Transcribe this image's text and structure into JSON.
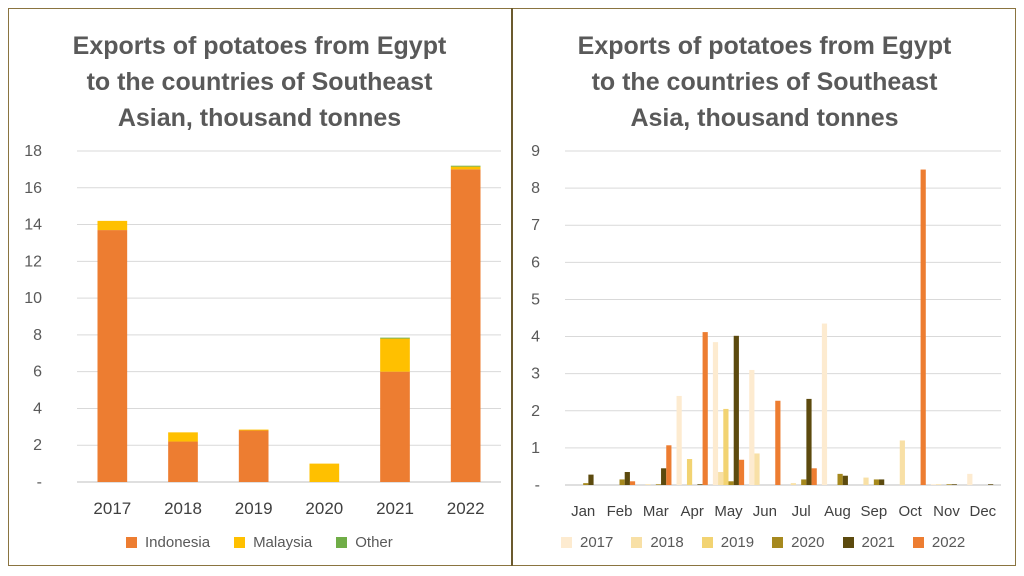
{
  "charts": [
    {
      "title_lines": [
        "Exports of potatoes from Egypt",
        "to the countries of Southeast",
        "Asian, thousand tonnes"
      ]
    },
    {
      "title_lines": [
        "Exports of potatoes from Egypt",
        "to the countries of Southeast",
        "Asia, thousand tonnes"
      ]
    }
  ],
  "chart_data": [
    {
      "type": "bar",
      "stacked": true,
      "title": "Exports of potatoes from Egypt to the countries of Southeast Asian, thousand tonnes",
      "categories": [
        "2017",
        "2018",
        "2019",
        "2020",
        "2021",
        "2022"
      ],
      "series": [
        {
          "name": "Indonesia",
          "color": "#ED7D31",
          "values": [
            13.7,
            2.2,
            2.8,
            0,
            6.0,
            17.0
          ]
        },
        {
          "name": "Malaysia",
          "color": "#FFC000",
          "values": [
            0.5,
            0.5,
            0.05,
            1.0,
            1.8,
            0.15
          ]
        },
        {
          "name": "Other",
          "color": "#70AD47",
          "values": [
            0,
            0,
            0,
            0,
            0.05,
            0.05
          ]
        }
      ],
      "y_ticks": [
        "-",
        "2",
        "4",
        "6",
        "8",
        "10",
        "12",
        "14",
        "16",
        "18"
      ],
      "ylim": [
        0,
        18
      ],
      "grid": true,
      "legend": "bottom"
    },
    {
      "type": "bar",
      "stacked": false,
      "title": "Exports of potatoes from Egypt to the countries of Southeast Asia, thousand tonnes",
      "categories": [
        "Jan",
        "Feb",
        "Mar",
        "Apr",
        "May",
        "Jun",
        "Jul",
        "Aug",
        "Sep",
        "Oct",
        "Nov",
        "Dec"
      ],
      "series": [
        {
          "name": "2017",
          "color": "#FDEBD0",
          "values": [
            0,
            0,
            0,
            2.4,
            3.85,
            3.1,
            0,
            4.35,
            0,
            0,
            0.02,
            0.3
          ]
        },
        {
          "name": "2018",
          "color": "#F8E0A6",
          "values": [
            0,
            0,
            0.02,
            0,
            0.35,
            0.85,
            0.05,
            0,
            0.2,
            1.2,
            0.02,
            0
          ]
        },
        {
          "name": "2019",
          "color": "#F2D372",
          "values": [
            0,
            0,
            0,
            0.7,
            2.05,
            0,
            0,
            0,
            0,
            0,
            0,
            0
          ]
        },
        {
          "name": "2020",
          "color": "#A6891E",
          "values": [
            0.05,
            0.15,
            0.02,
            0,
            0.1,
            0,
            0.15,
            0.3,
            0.15,
            0,
            0.02,
            0
          ]
        },
        {
          "name": "2021",
          "color": "#5C4A0E",
          "values": [
            0.28,
            0.35,
            0.45,
            0.02,
            4.02,
            0,
            2.32,
            0.25,
            0.15,
            0,
            0.02,
            0.02
          ]
        },
        {
          "name": "2022",
          "color": "#ED7D31",
          "values": [
            0,
            0.1,
            1.07,
            4.12,
            0.68,
            2.27,
            0.45,
            0,
            0,
            8.5,
            0,
            0
          ]
        }
      ],
      "y_ticks": [
        "-",
        "1",
        "2",
        "3",
        "4",
        "5",
        "6",
        "7",
        "8",
        "9"
      ],
      "ylim": [
        0,
        9
      ],
      "grid": true,
      "legend": "bottom"
    }
  ]
}
